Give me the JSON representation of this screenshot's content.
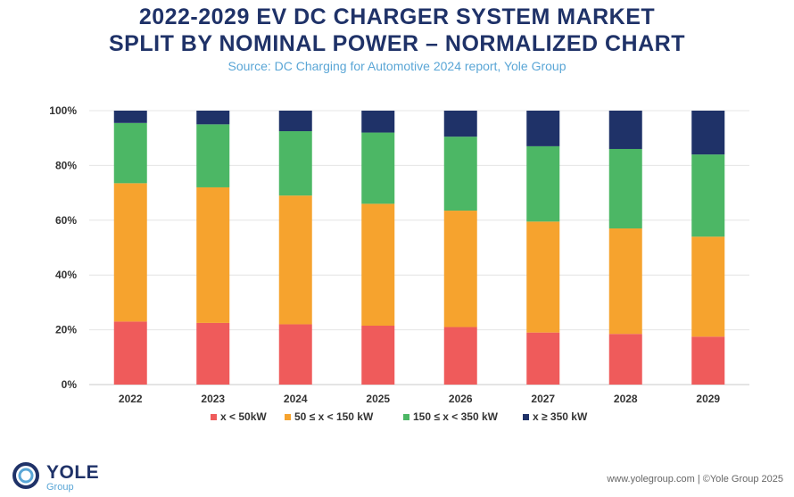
{
  "header": {
    "title_line1": "2022-2029 EV DC CHARGER SYSTEM MARKET",
    "title_line2": "SPLIT BY NOMINAL POWER – NORMALIZED CHART",
    "source": "Source: DC Charging for Automotive 2024 report, Yole Group"
  },
  "footer": {
    "text": "www.yolegroup.com | ©Yole Group 2025",
    "logo_text": "YOLE",
    "logo_sub": "Group"
  },
  "chart_data": {
    "type": "bar",
    "stacked": true,
    "normalized": true,
    "categories": [
      "2022",
      "2023",
      "2024",
      "2025",
      "2026",
      "2027",
      "2028",
      "2029"
    ],
    "ylim": [
      0,
      100
    ],
    "yticks": [
      "0%",
      "20%",
      "40%",
      "60%",
      "80%",
      "100%"
    ],
    "grid": true,
    "legend_position": "bottom",
    "series": [
      {
        "name": "x < 50kW",
        "color": "#ef5b5b",
        "values": [
          23,
          22.5,
          22,
          21.5,
          21,
          19,
          18.5,
          17.5
        ]
      },
      {
        "name": "50 ≤ x < 150 kW",
        "color": "#f6a32e",
        "values": [
          50.5,
          49.5,
          47,
          44.5,
          42.5,
          40.5,
          38.5,
          36.5
        ]
      },
      {
        "name": "150 ≤ x < 350 kW",
        "color": "#4cb765",
        "values": [
          22,
          23,
          23.5,
          26,
          27,
          27.5,
          29,
          30
        ]
      },
      {
        "name": "x ≥ 350 kW",
        "color": "#1f3268",
        "values": [
          4.5,
          5,
          7.5,
          8,
          9.5,
          13,
          14,
          16
        ]
      }
    ]
  }
}
